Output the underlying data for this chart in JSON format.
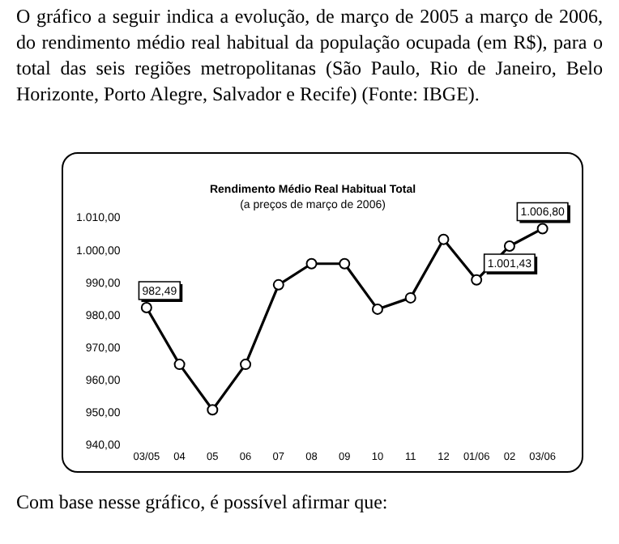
{
  "chart_data": {
    "type": "line",
    "title": "Rendimento Médio Real Habitual Total",
    "subtitle": "(a preços de março de 2006)",
    "annotations": [
      "O gráfico a seguir indica a evolução, de março de 2005 a março de 2006, do rendimento médio real habitual da população ocupada (em R$), para o total das seis regiões metropolitanas (São Paulo, Rio de Janeiro, Belo Horizonte, Porto Alegre, Salvador e Recife) (Fonte: IBGE).",
      "Com base nesse gráfico, é possível afirmar que:"
    ],
    "categories": [
      "03/05",
      "04",
      "05",
      "06",
      "07",
      "08",
      "09",
      "10",
      "11",
      "12",
      "01/06",
      "02",
      "03/06"
    ],
    "series": [
      {
        "color": "#000000",
        "values": [
          982.49,
          965,
          951,
          965,
          989.5,
          996,
          996,
          982,
          985.5,
          1003.5,
          991,
          1001.43,
          1006.8
        ],
        "value_labels": [
          "982,49",
          null,
          null,
          null,
          null,
          null,
          null,
          null,
          null,
          null,
          null,
          "1.001,43",
          "1.006,80"
        ]
      }
    ],
    "ylim": [
      940,
      1010
    ],
    "yticks": [
      {
        "value": 940,
        "label": "940,00"
      },
      {
        "value": 950,
        "label": "950,00"
      },
      {
        "value": 960,
        "label": "960,00"
      },
      {
        "value": 970,
        "label": "970,00"
      },
      {
        "value": 980,
        "label": "980,00"
      },
      {
        "value": 990,
        "label": "990,00"
      },
      {
        "value": 1000,
        "label": "1.000,00"
      },
      {
        "value": 1010,
        "label": "1.010,00"
      }
    ],
    "grid": false,
    "legend": false,
    "marker": "circle",
    "line_style": "solid"
  }
}
